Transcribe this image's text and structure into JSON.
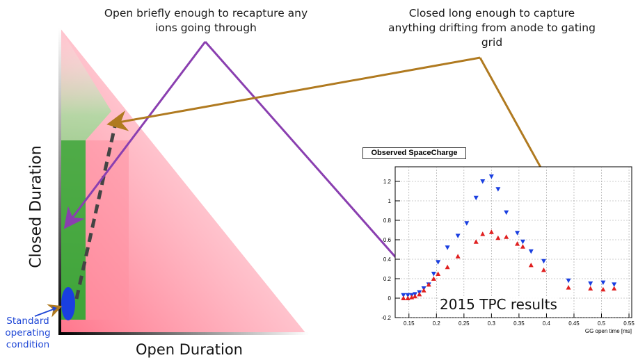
{
  "annotations": {
    "open_briefly": "Open briefly enough to recapture any ions going through",
    "closed_long": "Closed long enough to capture anything drifting from anode to gating grid",
    "standard_condition": "Standard operating condition"
  },
  "axes": {
    "y_title": "Closed Duration",
    "x_title": "Open Duration"
  },
  "inset": {
    "title": "Observed SpaceCharge",
    "results_label": "2015 TPC results"
  },
  "chart_data": {
    "type": "scatter",
    "title": "Observed SpaceCharge",
    "xlabel": "GG open time [ms]",
    "ylabel": "",
    "xlim": [
      0.125,
      0.555
    ],
    "ylim": [
      -0.2,
      1.35
    ],
    "xticks": [
      0.15,
      0.2,
      0.25,
      0.3,
      0.35,
      0.4,
      0.45,
      0.5,
      0.55
    ],
    "xtick_labels": [
      "0.15",
      "0.2",
      "0.25",
      "0.3",
      "0.35",
      "0.4",
      "0.45",
      "0.5",
      "0.55"
    ],
    "yticks": [
      -0.2,
      0,
      0.2,
      0.4,
      0.6,
      0.8,
      1,
      1.2
    ],
    "ytick_labels": [
      "-0.2",
      "0",
      "0.2",
      "0.4",
      "0.6",
      "0.8",
      "1",
      "1.2"
    ],
    "grid": true,
    "series": [
      {
        "marker": "triangle-down",
        "color": "#1a3fe0",
        "x": [
          0.14,
          0.148,
          0.155,
          0.161,
          0.169,
          0.177,
          0.186,
          0.195,
          0.203,
          0.22,
          0.239,
          0.255,
          0.272,
          0.284,
          0.3,
          0.312,
          0.327,
          0.347,
          0.357,
          0.372,
          0.395,
          0.44,
          0.48,
          0.503,
          0.523
        ],
        "y": [
          0.03,
          0.03,
          0.03,
          0.04,
          0.06,
          0.1,
          0.14,
          0.25,
          0.37,
          0.52,
          0.64,
          0.77,
          1.03,
          1.2,
          1.25,
          1.12,
          0.88,
          0.67,
          0.58,
          0.48,
          0.38,
          0.18,
          0.15,
          0.16,
          0.14
        ]
      },
      {
        "marker": "triangle-up",
        "color": "#e02020",
        "x": [
          0.14,
          0.148,
          0.155,
          0.161,
          0.169,
          0.177,
          0.186,
          0.195,
          0.203,
          0.22,
          0.239,
          0.272,
          0.284,
          0.3,
          0.312,
          0.327,
          0.347,
          0.357,
          0.372,
          0.395,
          0.44,
          0.48,
          0.503,
          0.523
        ],
        "y": [
          0.0,
          0.0,
          0.01,
          0.02,
          0.04,
          0.08,
          0.14,
          0.2,
          0.25,
          0.32,
          0.43,
          0.58,
          0.66,
          0.68,
          0.62,
          0.63,
          0.56,
          0.53,
          0.34,
          0.29,
          0.11,
          0.1,
          0.09,
          0.1
        ]
      }
    ]
  },
  "colors": {
    "green": "#3aa83a",
    "pink": "#ff7b8f",
    "purple_arrow": "#8a3fb0",
    "brown_arrow": "#b07a20",
    "blue_marker": "#1a3fe0",
    "red_marker": "#e02020"
  }
}
